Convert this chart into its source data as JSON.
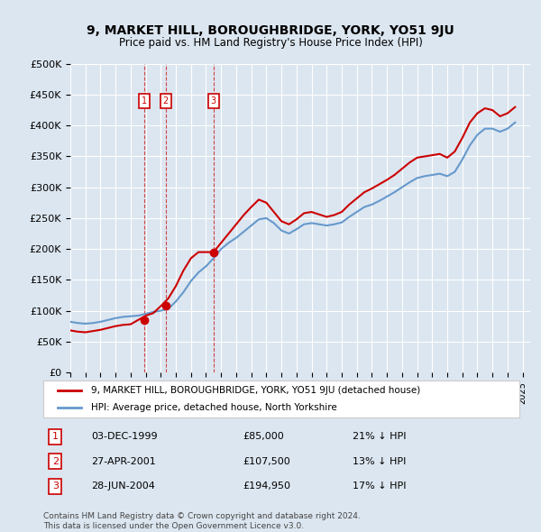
{
  "title": "9, MARKET HILL, BOROUGHBRIDGE, YORK, YO51 9JU",
  "subtitle": "Price paid vs. HM Land Registry's House Price Index (HPI)",
  "background_color": "#dce6f0",
  "plot_bg_color": "#dce6f0",
  "red_color": "#cc0000",
  "blue_color": "#6699cc",
  "transactions": [
    {
      "num": 1,
      "date_label": "03-DEC-1999",
      "price": 85000,
      "hpi_diff": "21% ↓ HPI",
      "x_year": 1999.92
    },
    {
      "num": 2,
      "date_label": "27-APR-2001",
      "price": 107500,
      "hpi_diff": "13% ↓ HPI",
      "x_year": 2001.32
    },
    {
      "num": 3,
      "date_label": "28-JUN-2004",
      "price": 194950,
      "hpi_diff": "17% ↓ HPI",
      "x_year": 2004.49
    }
  ],
  "legend_entries": [
    "9, MARKET HILL, BOROUGHBRIDGE, YORK, YO51 9JU (detached house)",
    "HPI: Average price, detached house, North Yorkshire"
  ],
  "footnote_line1": "Contains HM Land Registry data © Crown copyright and database right 2024.",
  "footnote_line2": "This data is licensed under the Open Government Licence v3.0.",
  "ylim": [
    0,
    500000
  ],
  "yticks": [
    0,
    50000,
    100000,
    150000,
    200000,
    250000,
    300000,
    350000,
    400000,
    450000,
    500000
  ],
  "xlim_start": 1995.0,
  "xlim_end": 2025.5,
  "hpi_data": {
    "years": [
      1995.0,
      1995.5,
      1996.0,
      1996.5,
      1997.0,
      1997.5,
      1998.0,
      1998.5,
      1999.0,
      1999.5,
      2000.0,
      2000.5,
      2001.0,
      2001.5,
      2002.0,
      2002.5,
      2003.0,
      2003.5,
      2004.0,
      2004.5,
      2005.0,
      2005.5,
      2006.0,
      2006.5,
      2007.0,
      2007.5,
      2008.0,
      2008.5,
      2009.0,
      2009.5,
      2010.0,
      2010.5,
      2011.0,
      2011.5,
      2012.0,
      2012.5,
      2013.0,
      2013.5,
      2014.0,
      2014.5,
      2015.0,
      2015.5,
      2016.0,
      2016.5,
      2017.0,
      2017.5,
      2018.0,
      2018.5,
      2019.0,
      2019.5,
      2020.0,
      2020.5,
      2021.0,
      2021.5,
      2022.0,
      2022.5,
      2023.0,
      2023.5,
      2024.0,
      2024.5
    ],
    "values": [
      82000,
      80000,
      79000,
      80000,
      82000,
      85000,
      88000,
      90000,
      91000,
      92000,
      95000,
      98000,
      100000,
      103000,
      115000,
      130000,
      148000,
      162000,
      172000,
      185000,
      200000,
      210000,
      218000,
      228000,
      238000,
      248000,
      250000,
      242000,
      230000,
      225000,
      232000,
      240000,
      242000,
      240000,
      238000,
      240000,
      243000,
      252000,
      260000,
      268000,
      272000,
      278000,
      285000,
      292000,
      300000,
      308000,
      315000,
      318000,
      320000,
      322000,
      318000,
      325000,
      345000,
      368000,
      385000,
      395000,
      395000,
      390000,
      395000,
      405000
    ]
  },
  "price_data": {
    "years": [
      1999.92,
      2001.32,
      2004.49
    ],
    "values": [
      85000,
      107500,
      194950
    ]
  },
  "red_line_data": {
    "years": [
      1995.0,
      1995.5,
      1996.0,
      1996.5,
      1997.0,
      1997.5,
      1998.0,
      1998.5,
      1999.0,
      1999.5,
      2000.0,
      2000.5,
      2001.0,
      2001.5,
      2002.0,
      2002.5,
      2003.0,
      2003.5,
      2004.0,
      2004.5,
      2005.0,
      2005.5,
      2006.0,
      2006.5,
      2007.0,
      2007.5,
      2008.0,
      2008.5,
      2009.0,
      2009.5,
      2010.0,
      2010.5,
      2011.0,
      2011.5,
      2012.0,
      2012.5,
      2013.0,
      2013.5,
      2014.0,
      2014.5,
      2015.0,
      2015.5,
      2016.0,
      2016.5,
      2017.0,
      2017.5,
      2018.0,
      2018.5,
      2019.0,
      2019.5,
      2020.0,
      2020.5,
      2021.0,
      2021.5,
      2022.0,
      2022.5,
      2023.0,
      2023.5,
      2024.0,
      2024.5
    ],
    "values": [
      68000,
      66000,
      65000,
      67000,
      69000,
      72000,
      75000,
      77000,
      78000,
      85000,
      92000,
      96000,
      107500,
      120000,
      140000,
      165000,
      185000,
      194950,
      194950,
      194950,
      210000,
      225000,
      240000,
      255000,
      268000,
      280000,
      275000,
      260000,
      245000,
      240000,
      248000,
      258000,
      260000,
      256000,
      252000,
      255000,
      260000,
      272000,
      282000,
      292000,
      298000,
      305000,
      312000,
      320000,
      330000,
      340000,
      348000,
      350000,
      352000,
      354000,
      348000,
      358000,
      380000,
      405000,
      420000,
      428000,
      425000,
      415000,
      420000,
      430000
    ]
  }
}
